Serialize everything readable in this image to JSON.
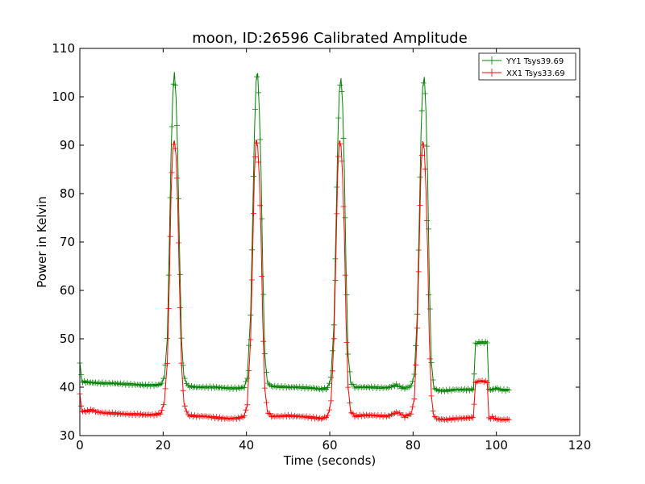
{
  "chart_data": {
    "type": "line",
    "title": "moon, ID:26596 Calibrated Amplitude",
    "xlabel": "Time (seconds)",
    "ylabel": "Power in Kelvin",
    "xlim": [
      0,
      120
    ],
    "ylim": [
      30,
      110
    ],
    "xticks": [
      "0",
      "20",
      "40",
      "60",
      "80",
      "100",
      "120"
    ],
    "yticks": [
      "30",
      "40",
      "50",
      "60",
      "70",
      "80",
      "90",
      "100",
      "110"
    ],
    "grid": false,
    "legend_position": "top-right",
    "marker": "plus",
    "series": [
      {
        "name": "YY1 Tsys39.69",
        "color": "#008000",
        "points": [
          [
            0,
            45.0
          ],
          [
            0.5,
            41.2
          ],
          [
            2,
            41.0
          ],
          [
            4,
            40.9
          ],
          [
            6,
            40.8
          ],
          [
            8,
            40.8
          ],
          [
            10,
            40.7
          ],
          [
            12,
            40.6
          ],
          [
            14,
            40.5
          ],
          [
            16,
            40.4
          ],
          [
            18,
            40.4
          ],
          [
            19.5,
            40.6
          ],
          [
            20.3,
            42.0
          ],
          [
            21.0,
            50.0
          ],
          [
            21.5,
            70.0
          ],
          [
            21.9,
            88.0
          ],
          [
            22.3,
            100.0
          ],
          [
            22.7,
            105.0
          ],
          [
            23.1,
            100.0
          ],
          [
            23.5,
            88.0
          ],
          [
            23.9,
            70.0
          ],
          [
            24.4,
            50.0
          ],
          [
            25.0,
            42.0
          ],
          [
            26,
            40.2
          ],
          [
            28,
            40.0
          ],
          [
            30,
            40.0
          ],
          [
            32,
            40.0
          ],
          [
            34,
            39.9
          ],
          [
            36,
            39.8
          ],
          [
            38,
            39.8
          ],
          [
            39.5,
            40.0
          ],
          [
            40.2,
            42.0
          ],
          [
            41.0,
            55.0
          ],
          [
            41.5,
            75.0
          ],
          [
            41.9,
            92.0
          ],
          [
            42.3,
            103.0
          ],
          [
            42.7,
            105.0
          ],
          [
            43.1,
            97.0
          ],
          [
            43.5,
            85.0
          ],
          [
            43.9,
            65.0
          ],
          [
            44.4,
            47.0
          ],
          [
            45.0,
            41.0
          ],
          [
            46,
            40.2
          ],
          [
            48,
            40.1
          ],
          [
            50,
            40.0
          ],
          [
            52,
            40.0
          ],
          [
            54,
            39.9
          ],
          [
            56,
            39.8
          ],
          [
            58,
            39.6
          ],
          [
            59.5,
            39.8
          ],
          [
            60.3,
            42.0
          ],
          [
            61.0,
            53.0
          ],
          [
            61.5,
            73.0
          ],
          [
            61.9,
            90.0
          ],
          [
            62.3,
            101.0
          ],
          [
            62.7,
            104.0
          ],
          [
            63.1,
            98.0
          ],
          [
            63.5,
            85.0
          ],
          [
            63.9,
            65.0
          ],
          [
            64.4,
            47.0
          ],
          [
            65.0,
            41.0
          ],
          [
            66,
            40.0
          ],
          [
            68,
            40.0
          ],
          [
            70,
            40.0
          ],
          [
            72,
            39.9
          ],
          [
            74,
            39.9
          ],
          [
            76,
            40.5
          ],
          [
            77,
            40.0
          ],
          [
            78,
            39.8
          ],
          [
            79.5,
            40.2
          ],
          [
            80.3,
            42.5
          ],
          [
            81.0,
            55.0
          ],
          [
            81.5,
            75.0
          ],
          [
            81.9,
            92.0
          ],
          [
            82.3,
            102.0
          ],
          [
            82.7,
            104.0
          ],
          [
            83.1,
            97.0
          ],
          [
            83.5,
            83.0
          ],
          [
            83.9,
            62.0
          ],
          [
            84.4,
            45.0
          ],
          [
            85.0,
            39.8
          ],
          [
            86,
            39.3
          ],
          [
            88,
            39.3
          ],
          [
            90,
            39.5
          ],
          [
            92,
            39.5
          ],
          [
            94,
            39.5
          ],
          [
            94.5,
            39.6
          ],
          [
            95.0,
            49.0
          ],
          [
            96,
            49.3
          ],
          [
            97,
            49.2
          ],
          [
            97.8,
            49.3
          ],
          [
            98.2,
            39.5
          ],
          [
            99,
            39.5
          ],
          [
            100,
            39.8
          ],
          [
            101,
            39.5
          ],
          [
            102,
            39.4
          ],
          [
            103,
            39.4
          ]
        ]
      },
      {
        "name": "XX1 Tsys33.69",
        "color": "#ff0000",
        "points": [
          [
            0,
            38.5
          ],
          [
            0.5,
            35.0
          ],
          [
            2,
            35.1
          ],
          [
            3,
            35.3
          ],
          [
            4,
            34.9
          ],
          [
            6,
            34.7
          ],
          [
            8,
            34.6
          ],
          [
            10,
            34.5
          ],
          [
            12,
            34.4
          ],
          [
            14,
            34.4
          ],
          [
            16,
            34.3
          ],
          [
            18,
            34.3
          ],
          [
            19.5,
            34.6
          ],
          [
            20.3,
            37.0
          ],
          [
            21.0,
            45.0
          ],
          [
            21.5,
            62.0
          ],
          [
            21.9,
            80.0
          ],
          [
            22.3,
            89.0
          ],
          [
            22.7,
            91.0
          ],
          [
            23.1,
            88.0
          ],
          [
            23.5,
            78.0
          ],
          [
            23.9,
            62.0
          ],
          [
            24.4,
            45.0
          ],
          [
            25.0,
            36.5
          ],
          [
            26,
            34.2
          ],
          [
            28,
            34.0
          ],
          [
            30,
            34.0
          ],
          [
            32,
            33.8
          ],
          [
            34,
            33.6
          ],
          [
            36,
            33.5
          ],
          [
            38,
            33.6
          ],
          [
            39.5,
            34.0
          ],
          [
            40.2,
            36.5
          ],
          [
            41.0,
            50.0
          ],
          [
            41.5,
            68.0
          ],
          [
            41.9,
            84.0
          ],
          [
            42.3,
            91.0
          ],
          [
            42.7,
            90.0
          ],
          [
            43.1,
            83.0
          ],
          [
            43.5,
            72.0
          ],
          [
            43.9,
            54.0
          ],
          [
            44.4,
            40.0
          ],
          [
            45.0,
            35.0
          ],
          [
            46,
            34.0
          ],
          [
            48,
            34.0
          ],
          [
            50,
            34.1
          ],
          [
            52,
            34.0
          ],
          [
            54,
            33.9
          ],
          [
            56,
            33.7
          ],
          [
            58,
            33.5
          ],
          [
            59.5,
            34.0
          ],
          [
            60.3,
            37.0
          ],
          [
            61.0,
            50.0
          ],
          [
            61.5,
            68.0
          ],
          [
            61.9,
            84.0
          ],
          [
            62.3,
            91.0
          ],
          [
            62.7,
            90.0
          ],
          [
            63.1,
            83.0
          ],
          [
            63.5,
            72.0
          ],
          [
            63.9,
            54.0
          ],
          [
            64.4,
            40.0
          ],
          [
            65.0,
            35.0
          ],
          [
            66,
            34.0
          ],
          [
            68,
            34.2
          ],
          [
            70,
            34.2
          ],
          [
            72,
            34.1
          ],
          [
            74,
            34.0
          ],
          [
            76,
            34.8
          ],
          [
            77,
            34.5
          ],
          [
            78,
            33.9
          ],
          [
            79.5,
            34.5
          ],
          [
            80.3,
            37.5
          ],
          [
            81.0,
            52.0
          ],
          [
            81.5,
            70.0
          ],
          [
            81.9,
            85.0
          ],
          [
            82.3,
            91.0
          ],
          [
            82.7,
            89.0
          ],
          [
            83.1,
            81.0
          ],
          [
            83.5,
            68.0
          ],
          [
            83.9,
            50.0
          ],
          [
            84.4,
            38.0
          ],
          [
            85.0,
            33.9
          ],
          [
            86,
            33.4
          ],
          [
            88,
            33.3
          ],
          [
            90,
            33.5
          ],
          [
            92,
            33.6
          ],
          [
            94,
            33.7
          ],
          [
            94.5,
            34.0
          ],
          [
            95.0,
            41.0
          ],
          [
            96,
            41.3
          ],
          [
            97,
            41.2
          ],
          [
            97.8,
            41.1
          ],
          [
            98.2,
            33.5
          ],
          [
            99,
            33.8
          ],
          [
            100,
            33.4
          ],
          [
            101,
            33.3
          ],
          [
            102,
            33.3
          ],
          [
            103,
            33.3
          ]
        ]
      }
    ]
  }
}
